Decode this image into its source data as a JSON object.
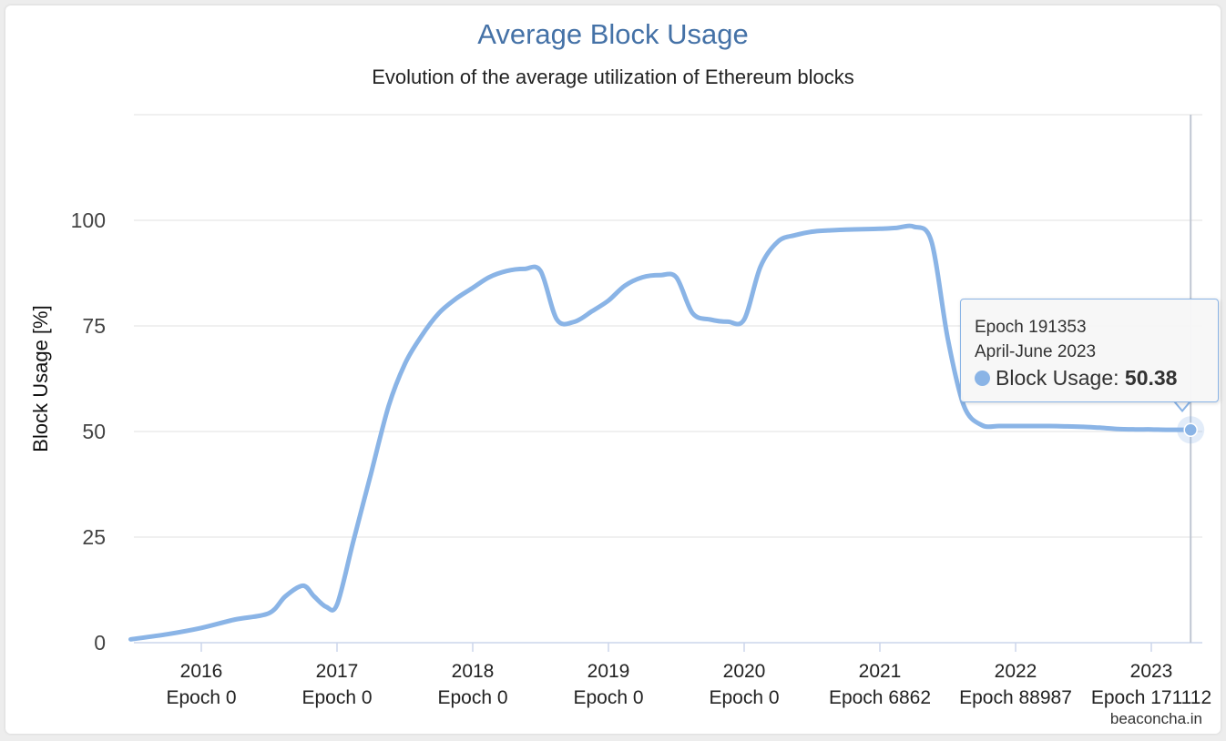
{
  "chart_data": {
    "type": "line",
    "title": "Average Block Usage",
    "subtitle": "Evolution of the average utilization of Ethereum blocks",
    "ylabel": "Block Usage [%]",
    "xlabel": "",
    "ylim": [
      0,
      125
    ],
    "yticks": [
      0,
      25,
      50,
      75,
      100
    ],
    "xticks": [
      {
        "year": 2016,
        "label": "2016",
        "epoch": "Epoch 0"
      },
      {
        "year": 2017,
        "label": "2017",
        "epoch": "Epoch 0"
      },
      {
        "year": 2018,
        "label": "2018",
        "epoch": "Epoch 0"
      },
      {
        "year": 2019,
        "label": "2019",
        "epoch": "Epoch 0"
      },
      {
        "year": 2020,
        "label": "2020",
        "epoch": "Epoch 0"
      },
      {
        "year": 2021,
        "label": "2021",
        "epoch": "Epoch 6862"
      },
      {
        "year": 2022,
        "label": "2022",
        "epoch": "Epoch 88987"
      },
      {
        "year": 2023,
        "label": "2023",
        "epoch": "Epoch 171112"
      }
    ],
    "xlim": [
      2015.48,
      2023.7
    ],
    "grid": true,
    "series": [
      {
        "name": "Block Usage",
        "color": "#8ab4e6",
        "x": [
          2015.48,
          2015.75,
          2016.0,
          2016.25,
          2016.5,
          2016.62,
          2016.75,
          2016.83,
          2016.92,
          2017.0,
          2017.12,
          2017.25,
          2017.38,
          2017.5,
          2017.62,
          2017.75,
          2017.88,
          2018.0,
          2018.12,
          2018.25,
          2018.38,
          2018.5,
          2018.62,
          2018.75,
          2018.88,
          2019.0,
          2019.12,
          2019.25,
          2019.38,
          2019.5,
          2019.62,
          2019.75,
          2019.88,
          2020.0,
          2020.12,
          2020.25,
          2020.38,
          2020.5,
          2020.62,
          2020.75,
          2020.88,
          2021.0,
          2021.12,
          2021.25,
          2021.38,
          2021.5,
          2021.62,
          2021.75,
          2021.88,
          2022.0,
          2022.12,
          2022.25,
          2022.38,
          2022.5,
          2022.62,
          2022.75,
          2022.88,
          2023.0,
          2023.12,
          2023.25,
          2023.29
        ],
        "values": [
          0.8,
          2.0,
          3.5,
          5.5,
          7.0,
          11.0,
          13.5,
          11.0,
          8.5,
          9.0,
          24.0,
          40.0,
          56.0,
          66.0,
          72.5,
          78.0,
          81.5,
          84.0,
          86.5,
          88.0,
          88.5,
          88.0,
          76.5,
          76.0,
          78.5,
          81.0,
          84.5,
          86.5,
          87.0,
          86.5,
          78.0,
          76.5,
          76.0,
          76.5,
          89.0,
          95.0,
          96.5,
          97.3,
          97.6,
          97.8,
          97.9,
          98.0,
          98.2,
          98.5,
          95.0,
          72.0,
          56.0,
          51.5,
          51.3,
          51.3,
          51.3,
          51.3,
          51.2,
          51.1,
          50.9,
          50.6,
          50.5,
          50.5,
          50.4,
          50.4,
          50.38
        ]
      }
    ],
    "tooltip": {
      "epoch": "Epoch 191353",
      "period": "April-June 2023",
      "series_label": "Block Usage: ",
      "value": "50.38",
      "x": 2023.29
    },
    "credits": "beaconcha.in"
  }
}
